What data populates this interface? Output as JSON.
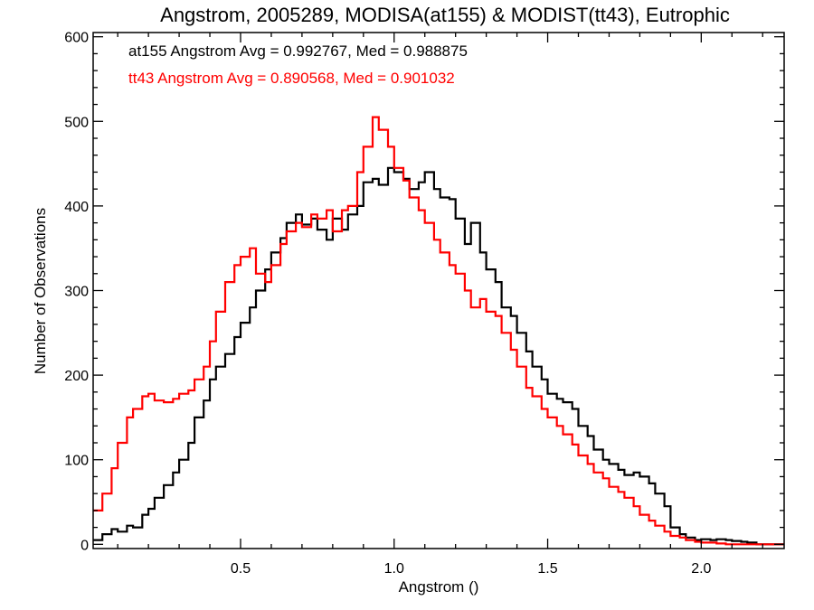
{
  "chart_data": {
    "type": "line",
    "title": "Angstrom, 2005289, MODISA(at155) & MODIST(tt43), Eutrophic",
    "xlabel": "Angstrom ()",
    "ylabel": "Number of Observations",
    "xlim": [
      0.02,
      2.27
    ],
    "ylim": [
      -5,
      605
    ],
    "x_ticks": [
      {
        "value": 0.5,
        "label": "0.5"
      },
      {
        "value": 1.0,
        "label": "1.0"
      },
      {
        "value": 1.5,
        "label": "1.5"
      },
      {
        "value": 2.0,
        "label": "2.0"
      }
    ],
    "y_ticks": [
      {
        "value": 0,
        "label": "0"
      },
      {
        "value": 100,
        "label": "100"
      },
      {
        "value": 200,
        "label": "200"
      },
      {
        "value": 300,
        "label": "300"
      },
      {
        "value": 400,
        "label": "400"
      },
      {
        "value": 500,
        "label": "500"
      },
      {
        "value": 600,
        "label": "600"
      }
    ],
    "step": "histogram",
    "grid": false,
    "annotations": [
      {
        "text": "at155 Angstrom Avg = 0.992767, Med = 0.988875",
        "color": "#000000"
      },
      {
        "text": "tt43 Angstrom Avg = 0.890568, Med = 0.901032",
        "color": "#ff0000"
      }
    ],
    "series": [
      {
        "color": "#000000",
        "x": [
          0.02,
          0.05,
          0.08,
          0.1,
          0.13,
          0.15,
          0.18,
          0.2,
          0.22,
          0.25,
          0.28,
          0.3,
          0.33,
          0.35,
          0.38,
          0.4,
          0.42,
          0.45,
          0.48,
          0.5,
          0.53,
          0.55,
          0.58,
          0.6,
          0.63,
          0.65,
          0.68,
          0.7,
          0.73,
          0.75,
          0.78,
          0.8,
          0.83,
          0.85,
          0.88,
          0.9,
          0.93,
          0.95,
          0.98,
          1.0,
          1.03,
          1.05,
          1.08,
          1.1,
          1.13,
          1.15,
          1.18,
          1.2,
          1.23,
          1.25,
          1.28,
          1.3,
          1.33,
          1.35,
          1.38,
          1.4,
          1.43,
          1.45,
          1.48,
          1.5,
          1.53,
          1.55,
          1.58,
          1.6,
          1.63,
          1.65,
          1.68,
          1.7,
          1.73,
          1.75,
          1.78,
          1.8,
          1.83,
          1.85,
          1.88,
          1.9,
          1.93,
          1.95,
          1.98,
          2.0,
          2.03,
          2.05,
          2.08,
          2.1,
          2.13,
          2.15,
          2.18,
          2.2,
          2.23,
          2.27
        ],
        "y": [
          5,
          12,
          18,
          15,
          22,
          20,
          35,
          42,
          55,
          70,
          85,
          100,
          120,
          150,
          170,
          195,
          210,
          225,
          245,
          262,
          280,
          300,
          325,
          345,
          362,
          380,
          390,
          378,
          385,
          372,
          360,
          385,
          372,
          390,
          400,
          428,
          432,
          425,
          445,
          440,
          432,
          420,
          428,
          440,
          420,
          410,
          408,
          385,
          355,
          380,
          345,
          325,
          310,
          280,
          270,
          250,
          228,
          210,
          195,
          178,
          172,
          168,
          160,
          140,
          128,
          112,
          100,
          95,
          88,
          82,
          85,
          80,
          72,
          60,
          45,
          20,
          12,
          8,
          5,
          6,
          5,
          6,
          5,
          4,
          3,
          2,
          0,
          0,
          0,
          0
        ]
      },
      {
        "color": "#ff0000",
        "x": [
          0.02,
          0.05,
          0.08,
          0.1,
          0.13,
          0.15,
          0.18,
          0.2,
          0.22,
          0.25,
          0.28,
          0.3,
          0.33,
          0.35,
          0.38,
          0.4,
          0.42,
          0.45,
          0.48,
          0.5,
          0.53,
          0.55,
          0.58,
          0.6,
          0.63,
          0.65,
          0.68,
          0.7,
          0.73,
          0.75,
          0.78,
          0.8,
          0.83,
          0.85,
          0.88,
          0.9,
          0.93,
          0.95,
          0.98,
          1.0,
          1.03,
          1.05,
          1.08,
          1.1,
          1.13,
          1.15,
          1.18,
          1.2,
          1.23,
          1.25,
          1.28,
          1.3,
          1.33,
          1.35,
          1.38,
          1.4,
          1.43,
          1.45,
          1.48,
          1.5,
          1.53,
          1.55,
          1.58,
          1.6,
          1.63,
          1.65,
          1.68,
          1.7,
          1.73,
          1.75,
          1.78,
          1.8,
          1.83,
          1.85,
          1.88,
          1.9,
          1.93,
          1.95,
          1.98,
          2.0,
          2.03,
          2.05,
          2.08,
          2.1,
          2.13,
          2.15,
          2.18,
          2.2,
          2.23,
          2.27
        ],
        "y": [
          40,
          60,
          90,
          120,
          150,
          160,
          175,
          178,
          170,
          168,
          172,
          178,
          182,
          195,
          210,
          240,
          275,
          310,
          330,
          340,
          350,
          320,
          310,
          330,
          355,
          370,
          380,
          375,
          390,
          385,
          395,
          370,
          395,
          400,
          440,
          470,
          505,
          490,
          470,
          445,
          430,
          410,
          395,
          380,
          360,
          345,
          330,
          320,
          300,
          280,
          290,
          275,
          270,
          250,
          230,
          210,
          185,
          175,
          160,
          150,
          140,
          130,
          118,
          105,
          95,
          85,
          78,
          68,
          62,
          55,
          45,
          35,
          28,
          22,
          15,
          10,
          8,
          5,
          3,
          2,
          2,
          1,
          0,
          0,
          0,
          0,
          0,
          0,
          0,
          0
        ]
      }
    ]
  }
}
